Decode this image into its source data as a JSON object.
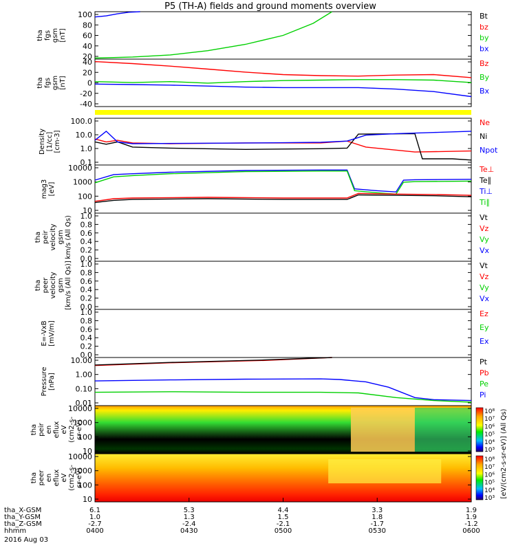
{
  "title": "P5 (TH-A) fields and ground moments overview",
  "footer": {
    "rows": [
      {
        "label": "tha_X-GSM",
        "values": [
          "6.1",
          "5.3",
          "4.4",
          "3.3",
          "1.9"
        ]
      },
      {
        "label": "tha_Y-GSM",
        "values": [
          "1.0",
          "1.3",
          "1.5",
          "1.8",
          "1.9"
        ]
      },
      {
        "label": "tha_Z-GSM",
        "values": [
          "-2.7",
          "-2.4",
          "-2.1",
          "-1.7",
          "-1.2"
        ]
      },
      {
        "label": "hhmm",
        "values": [
          "0400",
          "0430",
          "0500",
          "0530",
          "0600"
        ]
      }
    ],
    "date": "2016 Aug 03"
  },
  "colors": {
    "black": "#000000",
    "red": "#ff0000",
    "green": "#00d000",
    "blue": "#0000ff",
    "yellow": "#ffff00"
  },
  "chart_data": [
    {
      "type": "line",
      "id": "fgs_mag",
      "ylabel": [
        "tha",
        "fgs",
        "gsm",
        "[nT]"
      ],
      "yticks": [
        "100",
        "80",
        "60",
        "40",
        "20"
      ],
      "ylim": [
        10,
        100
      ],
      "legend": [
        {
          "name": "Bt",
          "color": "#000000"
        },
        {
          "name": "bz",
          "color": "#ff0000"
        },
        {
          "name": "by",
          "color": "#00d000"
        },
        {
          "name": "bx",
          "color": "#0000ff"
        }
      ],
      "series": [
        {
          "name": "bx",
          "color": "#0000ff",
          "x": [
            0.0,
            0.03,
            0.06,
            0.09,
            0.12
          ],
          "y": [
            90,
            92,
            96,
            99,
            101
          ]
        },
        {
          "name": "by",
          "color": "#00d000",
          "x": [
            0.0,
            0.1,
            0.2,
            0.3,
            0.4,
            0.5,
            0.58,
            0.63
          ],
          "y": [
            12,
            14,
            18,
            26,
            38,
            55,
            78,
            100
          ]
        }
      ]
    },
    {
      "type": "line",
      "id": "fgs_gsm",
      "ylabel": [
        "tha",
        "fgs",
        "gsm",
        "[nT]"
      ],
      "yticks": [
        "40",
        "20",
        "0",
        "-20",
        "-40"
      ],
      "ylim": [
        -50,
        45
      ],
      "legend": [
        {
          "name": "Bz",
          "color": "#ff0000"
        },
        {
          "name": "By",
          "color": "#00d000"
        },
        {
          "name": "Bx",
          "color": "#0000ff"
        }
      ],
      "series": [
        {
          "name": "Bz",
          "color": "#ff0000",
          "x": [
            0.0,
            0.1,
            0.2,
            0.3,
            0.4,
            0.5,
            0.6,
            0.7,
            0.8,
            0.9,
            1.0
          ],
          "y": [
            40,
            36,
            31,
            25,
            19,
            14,
            12,
            11,
            13,
            14,
            8
          ]
        },
        {
          "name": "By",
          "color": "#00d000",
          "x": [
            0.0,
            0.1,
            0.2,
            0.3,
            0.4,
            0.5,
            0.6,
            0.7,
            0.8,
            0.9,
            1.0
          ],
          "y": [
            0,
            -2,
            0,
            -3,
            0,
            2,
            3,
            4,
            4,
            3,
            -2
          ]
        },
        {
          "name": "Bx",
          "color": "#0000ff",
          "x": [
            0.0,
            0.1,
            0.2,
            0.3,
            0.4,
            0.5,
            0.6,
            0.7,
            0.8,
            0.9,
            1.0
          ],
          "y": [
            -5,
            -6,
            -7,
            -9,
            -11,
            -12,
            -12,
            -12,
            -15,
            -20,
            -30
          ]
        }
      ]
    },
    {
      "type": "line",
      "id": "density",
      "ylabel": [
        "Density",
        "[1/cc]",
        "[cm-3]"
      ],
      "yticks": [
        "100.0",
        "10.0",
        "1.0",
        "0.1"
      ],
      "ylim": [
        0.05,
        200
      ],
      "scale": "log",
      "legend": [
        {
          "name": "Ne",
          "color": "#ff0000"
        },
        {
          "name": "Ni",
          "color": "#000000"
        },
        {
          "name": "Npot",
          "color": "#0000ff"
        }
      ],
      "series": [
        {
          "name": "Ne",
          "color": "#ff0000",
          "x": [
            0.0,
            0.03,
            0.06,
            0.1,
            0.2,
            0.4,
            0.6,
            0.67,
            0.72,
            0.85,
            1.0
          ],
          "y": [
            5,
            3,
            4,
            2.5,
            2.2,
            2.5,
            2.5,
            3.5,
            1.2,
            0.5,
            0.6
          ]
        },
        {
          "name": "Ni",
          "color": "#000000",
          "x": [
            0.0,
            0.03,
            0.06,
            0.1,
            0.2,
            0.4,
            0.6,
            0.67,
            0.7,
            0.85,
            0.87,
            0.95,
            1.0
          ],
          "y": [
            3,
            2,
            3,
            1.2,
            1.0,
            0.8,
            0.9,
            1.0,
            12,
            13,
            0.15,
            0.15,
            0.12
          ]
        },
        {
          "name": "Npot",
          "color": "#0000ff",
          "x": [
            0.0,
            0.03,
            0.06,
            0.1,
            0.3,
            0.5,
            0.6,
            0.67,
            0.72,
            0.8,
            0.9,
            1.0
          ],
          "y": [
            4,
            20,
            3,
            2.2,
            2.4,
            2.6,
            2.8,
            3.5,
            10,
            13,
            16,
            20
          ]
        }
      ]
    },
    {
      "type": "line",
      "id": "mom_temp",
      "ylabel": [
        "mag3",
        "[eV]"
      ],
      "yticks": [
        "10000",
        "1000",
        "100",
        "10"
      ],
      "ylim": [
        10,
        15000
      ],
      "scale": "log",
      "legend": [
        {
          "name": "Te⊥",
          "color": "#ff0000"
        },
        {
          "name": "Te∥",
          "color": "#000000"
        },
        {
          "name": "Ti⊥",
          "color": "#0000ff"
        },
        {
          "name": "Ti∥",
          "color": "#00d000"
        }
      ],
      "series": [
        {
          "name": "Ti⊥",
          "color": "#0000ff",
          "x": [
            0.0,
            0.05,
            0.1,
            0.2,
            0.4,
            0.6,
            0.67,
            0.69,
            0.75,
            0.8,
            0.82,
            0.85,
            1.0
          ],
          "y": [
            1500,
            3500,
            4000,
            5000,
            6500,
            7000,
            7000,
            400,
            300,
            250,
            1500,
            1600,
            1700
          ]
        },
        {
          "name": "Ti∥",
          "color": "#00d000",
          "x": [
            0.0,
            0.05,
            0.1,
            0.2,
            0.4,
            0.6,
            0.67,
            0.69,
            0.75,
            0.8,
            0.82,
            0.85,
            1.0
          ],
          "y": [
            1000,
            2500,
            3000,
            4000,
            5500,
            6000,
            6000,
            300,
            220,
            180,
            1100,
            1200,
            1300
          ]
        },
        {
          "name": "Te⊥",
          "color": "#ff0000",
          "x": [
            0.0,
            0.05,
            0.1,
            0.3,
            0.5,
            0.67,
            0.7,
            0.8,
            0.9,
            1.0
          ],
          "y": [
            60,
            90,
            100,
            110,
            100,
            100,
            200,
            180,
            170,
            150
          ]
        },
        {
          "name": "Te∥",
          "color": "#000000",
          "x": [
            0.0,
            0.05,
            0.1,
            0.3,
            0.5,
            0.67,
            0.7,
            0.8,
            0.9,
            1.0
          ],
          "y": [
            50,
            70,
            80,
            90,
            80,
            80,
            160,
            150,
            140,
            120
          ]
        }
      ]
    },
    {
      "type": "line",
      "id": "peir_vel",
      "ylabel": [
        "tha",
        "peir",
        "velocity",
        "gsm",
        "km/s (All Qs)"
      ],
      "yticks": [
        "1.0",
        "0.8",
        "0.6",
        "0.4",
        "0.2",
        "0.0"
      ],
      "ylim": [
        0,
        1
      ],
      "legend": [
        {
          "name": "Vt",
          "color": "#000000"
        },
        {
          "name": "Vz",
          "color": "#ff0000"
        },
        {
          "name": "Vy",
          "color": "#00d000"
        },
        {
          "name": "Vx",
          "color": "#0000ff"
        }
      ],
      "series": []
    },
    {
      "type": "line",
      "id": "peer_vel",
      "ylabel": [
        "tha",
        "peer",
        "velocity",
        "gsm",
        "[km/s (All Qs)]"
      ],
      "yticks": [
        "1.0",
        "0.8",
        "0.6",
        "0.4",
        "0.2",
        "0.0"
      ],
      "ylim": [
        0,
        1
      ],
      "legend": [
        {
          "name": "Vt",
          "color": "#000000"
        },
        {
          "name": "Vz",
          "color": "#ff0000"
        },
        {
          "name": "Vy",
          "color": "#00d000"
        },
        {
          "name": "Vx",
          "color": "#0000ff"
        }
      ],
      "series": []
    },
    {
      "type": "line",
      "id": "efield",
      "ylabel": [
        "E=-VxB",
        "[mV/m]"
      ],
      "yticks": [
        "1.0",
        "0.8",
        "0.6",
        "0.4",
        "0.2",
        "0.0"
      ],
      "ylim": [
        0,
        1
      ],
      "legend": [
        {
          "name": "Ez",
          "color": "#ff0000"
        },
        {
          "name": "Ey",
          "color": "#00d000"
        },
        {
          "name": "Ex",
          "color": "#0000ff"
        }
      ],
      "series": []
    },
    {
      "type": "line",
      "id": "pressure",
      "ylabel": [
        "Pressure",
        "[nPa]"
      ],
      "yticks": [
        "10.00",
        "1.00",
        "0.10",
        "0.01"
      ],
      "ylim": [
        0.005,
        20
      ],
      "scale": "log",
      "legend": [
        {
          "name": "Pt",
          "color": "#000000"
        },
        {
          "name": "Pb",
          "color": "#ff0000"
        },
        {
          "name": "Pe",
          "color": "#00d000"
        },
        {
          "name": "Pi",
          "color": "#0000ff"
        }
      ],
      "series": [
        {
          "name": "Pb",
          "color": "#ff0000",
          "x": [
            0.0,
            0.2,
            0.45,
            0.63
          ],
          "y": [
            5,
            8,
            12,
            20
          ]
        },
        {
          "name": "Pt",
          "color": "#000000",
          "x": [
            0.0,
            0.2,
            0.45,
            0.63
          ],
          "y": [
            5.5,
            8.5,
            13,
            21
          ]
        },
        {
          "name": "Pi",
          "color": "#0000ff",
          "x": [
            0.0,
            0.2,
            0.4,
            0.6,
            0.65,
            0.72,
            0.78,
            0.85,
            0.9,
            1.0
          ],
          "y": [
            0.35,
            0.42,
            0.48,
            0.5,
            0.45,
            0.3,
            0.12,
            0.02,
            0.014,
            0.012
          ]
        },
        {
          "name": "Pe",
          "color": "#00d000",
          "x": [
            0.0,
            0.2,
            0.4,
            0.6,
            0.7,
            0.8,
            0.9,
            1.0
          ],
          "y": [
            0.05,
            0.055,
            0.05,
            0.05,
            0.045,
            0.02,
            0.012,
            0.009
          ]
        }
      ]
    },
    {
      "type": "heatmap",
      "id": "peir_en",
      "ylabel": [
        "tha",
        "peir",
        "en",
        "eflux",
        "eV",
        "(cm2-s-",
        "sr-eV)"
      ],
      "yticks": [
        "10000",
        "1000",
        "100",
        "10"
      ],
      "colorbar": {
        "ticks": [
          "10⁸",
          "10⁷",
          "10⁶",
          "10⁵",
          "10⁴",
          "10³"
        ],
        "label": "[eV/(cm2-s-sr-eV)] (All Qs)"
      }
    },
    {
      "type": "heatmap",
      "id": "peer_en",
      "ylabel": [
        "tha",
        "peer",
        "en",
        "eflux",
        "eV",
        "(cm2-s-",
        "sr-eV)"
      ],
      "yticks": [
        "10000",
        "1000",
        "100",
        "10"
      ],
      "colorbar": {
        "ticks": [
          "10⁸",
          "10⁷",
          "10⁶",
          "10⁵",
          "10⁴",
          "10³"
        ],
        "label": ""
      }
    }
  ]
}
